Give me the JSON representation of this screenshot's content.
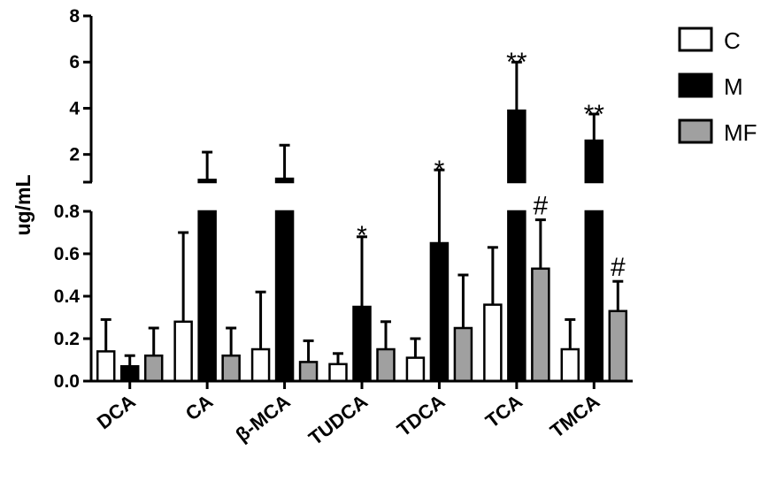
{
  "chart_data": {
    "type": "bar",
    "ylabel": "ug/mL",
    "categories": [
      "DCA",
      "CA",
      "β-MCA",
      "TUDCA",
      "TDCA",
      "TCA",
      "TMCA"
    ],
    "series": [
      {
        "name": "C",
        "color": "#ffffff",
        "values": [
          0.14,
          0.28,
          0.15,
          0.08,
          0.11,
          0.36,
          0.15
        ],
        "errors": [
          0.15,
          0.42,
          0.27,
          0.05,
          0.09,
          0.27,
          0.14
        ]
      },
      {
        "name": "M",
        "color": "#000000",
        "values": [
          0.07,
          0.9,
          0.95,
          0.35,
          0.65,
          3.9,
          2.6
        ],
        "errors": [
          0.05,
          1.2,
          1.45,
          0.33,
          0.68,
          2.1,
          1.15
        ]
      },
      {
        "name": "MF",
        "color": "#a0a0a0",
        "values": [
          0.12,
          0.12,
          0.09,
          0.15,
          0.25,
          0.53,
          0.33
        ],
        "errors": [
          0.13,
          0.13,
          0.1,
          0.13,
          0.25,
          0.23,
          0.14
        ]
      }
    ],
    "y_axis": {
      "broken": true,
      "lower_range": [
        0,
        0.8
      ],
      "lower_ticks": [
        "0.0",
        "0.2",
        "0.4",
        "0.6",
        "0.8"
      ],
      "upper_range": [
        0.8,
        8
      ],
      "upper_ticks": [
        "2",
        "4",
        "6",
        "8"
      ]
    },
    "annotations": [
      {
        "category": "TUDCA",
        "series": "M",
        "text": "*"
      },
      {
        "category": "TDCA",
        "series": "M",
        "text": "*"
      },
      {
        "category": "TCA",
        "series": "M",
        "text": "**"
      },
      {
        "category": "TMCA",
        "series": "M",
        "text": "**"
      },
      {
        "category": "TCA",
        "series": "MF",
        "text": "#"
      },
      {
        "category": "TMCA",
        "series": "MF",
        "text": "#"
      }
    ],
    "legend": {
      "position": "top-right"
    },
    "grid": false
  }
}
